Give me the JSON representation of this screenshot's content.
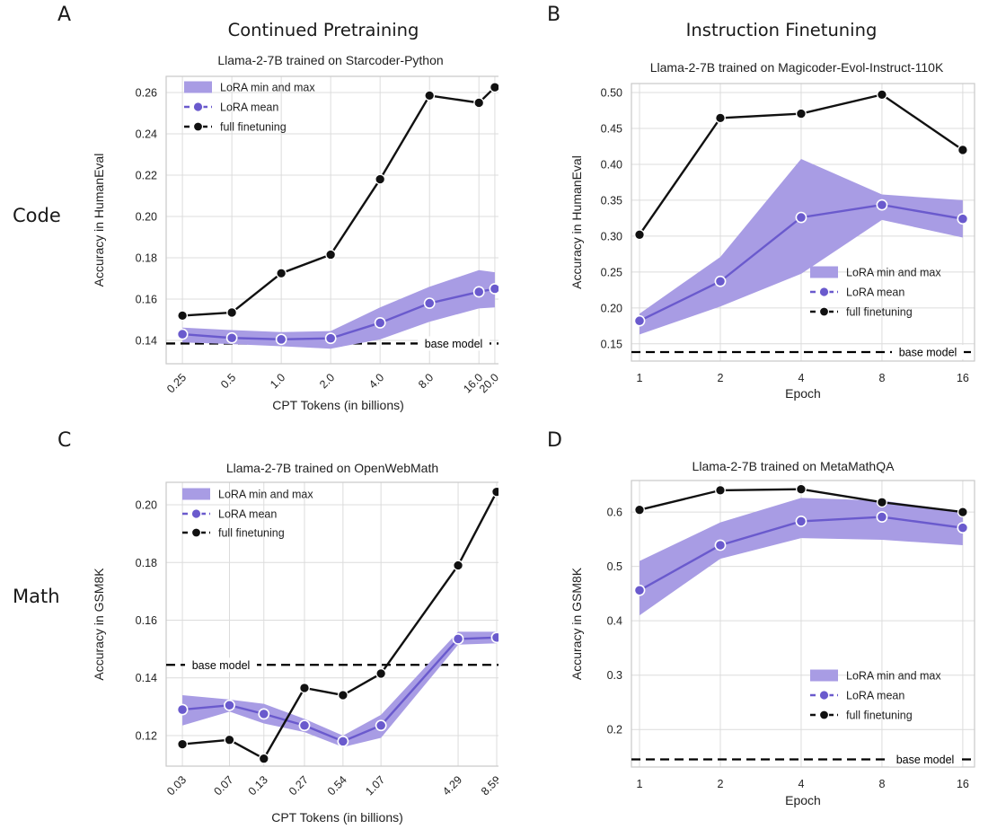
{
  "figure": {
    "row_labels": [
      "Code",
      "Math"
    ],
    "column_titles": [
      "Continued Pretraining",
      "Instruction Finetuning"
    ],
    "panel_letters": [
      "A",
      "B",
      "C",
      "D"
    ]
  },
  "legend_labels": {
    "band": "LoRA min and max",
    "mean": "LoRA mean",
    "full": "full finetuning"
  },
  "base_model_label": "base model",
  "colors": {
    "lora_line": "#6a5acd",
    "lora_band": "#a89ce4",
    "full_line": "#111111",
    "grid": "#dcdcdc",
    "spine": "#c9c9c9",
    "base_line": "#000000",
    "text": "#1f1f1f"
  },
  "chart_data": [
    {
      "id": "A",
      "panel_letter": "A",
      "column_title": "Continued Pretraining",
      "row_label": "Code",
      "type": "line",
      "title": "Llama-2-7B trained on Starcoder-Python",
      "xlabel": "CPT Tokens (in billions)",
      "ylabel": "Accuracy in HumanEval",
      "xscale": "log",
      "legend_location": "upper left",
      "x": [
        0.25,
        0.5,
        1.0,
        2.0,
        4.0,
        8.0,
        16.0,
        20.0
      ],
      "x_tick_labels": [
        "0.25",
        "0.5",
        "1.0",
        "2.0",
        "4.0",
        "8.0",
        "16.0",
        "20.0"
      ],
      "rotate_x_ticks": true,
      "y_ticks": [
        0.14,
        0.16,
        0.18,
        0.2,
        0.22,
        0.24,
        0.26
      ],
      "y_tick_labels": [
        "0.14",
        "0.16",
        "0.18",
        "0.20",
        "0.22",
        "0.24",
        "0.26"
      ],
      "xlim": [
        0.199,
        24.8
      ],
      "ylim": [
        0.1287,
        0.2678
      ],
      "base_model_value": 0.1385,
      "series": [
        {
          "name": "LoRA min and max",
          "type": "band",
          "min": [
            0.139,
            0.1382,
            0.1372,
            0.136,
            0.1405,
            0.149,
            0.1555,
            0.156
          ],
          "max": [
            0.1462,
            0.145,
            0.144,
            0.1445,
            0.156,
            0.166,
            0.174,
            0.173
          ]
        },
        {
          "name": "LoRA mean",
          "type": "line_markers",
          "values": [
            0.143,
            0.1412,
            0.1405,
            0.141,
            0.1485,
            0.158,
            0.1635,
            0.165
          ]
        },
        {
          "name": "full finetuning",
          "type": "line_markers",
          "values": [
            0.152,
            0.1535,
            0.1725,
            0.1815,
            0.218,
            0.2585,
            0.255,
            0.2625
          ]
        }
      ]
    },
    {
      "id": "B",
      "panel_letter": "B",
      "column_title": "Instruction Finetuning",
      "row_label": "Code",
      "type": "line",
      "title": "Llama-2-7B trained on Magicoder-Evol-Instruct-110K",
      "xlabel": "Epoch",
      "ylabel": "Accuracy in HumanEval",
      "xscale": "log",
      "legend_location": "center right",
      "x": [
        1,
        2,
        4,
        8,
        16
      ],
      "x_tick_labels": [
        "1",
        "2",
        "4",
        "8",
        "16"
      ],
      "rotate_x_ticks": false,
      "y_ticks": [
        0.15,
        0.2,
        0.25,
        0.3,
        0.35,
        0.4,
        0.45,
        0.5
      ],
      "y_tick_labels": [
        "0.15",
        "0.20",
        "0.25",
        "0.30",
        "0.35",
        "0.40",
        "0.45",
        "0.50"
      ],
      "xlim": [
        0.933,
        17.7
      ],
      "ylim": [
        0.126,
        0.5125
      ],
      "base_model_value": 0.1385,
      "series": [
        {
          "name": "LoRA min and max",
          "type": "band",
          "min": [
            0.163,
            0.202,
            0.2475,
            0.3225,
            0.298
          ],
          "max": [
            0.192,
            0.271,
            0.4075,
            0.358,
            0.35
          ]
        },
        {
          "name": "LoRA mean",
          "type": "line_markers",
          "values": [
            0.182,
            0.237,
            0.326,
            0.3435,
            0.324
          ]
        },
        {
          "name": "full finetuning",
          "type": "line_markers",
          "values": [
            0.302,
            0.4645,
            0.4705,
            0.497,
            0.42
          ]
        }
      ]
    },
    {
      "id": "C",
      "panel_letter": "C",
      "column_title": "",
      "row_label": "Math",
      "type": "line",
      "title": "Llama-2-7B trained on OpenWebMath",
      "xlabel": "CPT Tokens (in billions)",
      "ylabel": "Accuracy in GSM8K",
      "xscale": "log",
      "legend_location": "upper left",
      "x": [
        0.03,
        0.07,
        0.13,
        0.27,
        0.54,
        1.07,
        4.29,
        8.59
      ],
      "x_tick_labels": [
        "0.03",
        "0.07",
        "0.13",
        "0.27",
        "0.54",
        "1.07",
        "4.29",
        "8.59"
      ],
      "rotate_x_ticks": true,
      "y_ticks": [
        0.12,
        0.14,
        0.16,
        0.18,
        0.2
      ],
      "y_tick_labels": [
        "0.12",
        "0.14",
        "0.16",
        "0.18",
        "0.20"
      ],
      "xlim": [
        0.0224,
        10.6
      ],
      "ylim": [
        0.1094,
        0.2078
      ],
      "base_model_value": 0.1445,
      "series": [
        {
          "name": "LoRA min and max",
          "type": "band",
          "min": [
            0.1235,
            0.1283,
            0.1242,
            0.1212,
            0.116,
            0.1192,
            0.1515,
            0.152
          ],
          "max": [
            0.134,
            0.1325,
            0.131,
            0.1258,
            0.12,
            0.1272,
            0.156,
            0.156
          ]
        },
        {
          "name": "LoRA mean",
          "type": "line_markers",
          "values": [
            0.129,
            0.1305,
            0.1275,
            0.1235,
            0.118,
            0.1235,
            0.1535,
            0.154
          ]
        },
        {
          "name": "full finetuning",
          "type": "line_markers",
          "values": [
            0.117,
            0.1185,
            0.112,
            0.1365,
            0.134,
            0.1415,
            0.179,
            0.2045
          ]
        }
      ]
    },
    {
      "id": "D",
      "panel_letter": "D",
      "column_title": "",
      "row_label": "Math",
      "type": "line",
      "title": "Llama-2-7B trained on MetaMathQA",
      "xlabel": "Epoch",
      "ylabel": "Accuracy in GSM8K",
      "xscale": "log",
      "legend_location": "center right",
      "x": [
        1,
        2,
        4,
        8,
        16
      ],
      "x_tick_labels": [
        "1",
        "2",
        "4",
        "8",
        "16"
      ],
      "rotate_x_ticks": false,
      "y_ticks": [
        0.2,
        0.3,
        0.4,
        0.5,
        0.6
      ],
      "y_tick_labels": [
        "0.2",
        "0.3",
        "0.4",
        "0.5",
        "0.6"
      ],
      "xlim": [
        0.933,
        17.7
      ],
      "ylim": [
        0.131,
        0.658
      ],
      "base_model_value": 0.145,
      "series": [
        {
          "name": "LoRA min and max",
          "type": "band",
          "min": [
            0.41,
            0.514,
            0.552,
            0.549,
            0.539
          ],
          "max": [
            0.51,
            0.581,
            0.626,
            0.621,
            0.601
          ]
        },
        {
          "name": "LoRA mean",
          "type": "line_markers",
          "values": [
            0.456,
            0.539,
            0.583,
            0.591,
            0.571
          ]
        },
        {
          "name": "full finetuning",
          "type": "line_markers",
          "values": [
            0.604,
            0.64,
            0.642,
            0.618,
            0.6
          ]
        }
      ]
    }
  ]
}
